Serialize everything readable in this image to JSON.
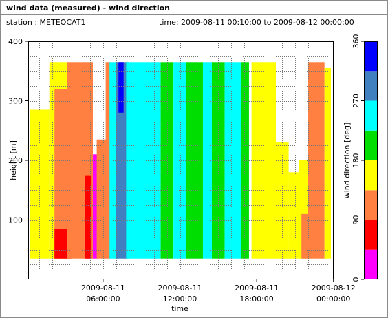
{
  "header": {
    "title": "wind data (measured) - wind direction",
    "station_label": "station : METEOCAT1",
    "time_label": "time: 2009-08-11 00:10:00 to 2009-08-12 00:00:00"
  },
  "chart_data": {
    "type": "heatmap",
    "xlabel": "time",
    "ylabel": "height [m]",
    "xlim": [
      0,
      24
    ],
    "ylim": [
      0,
      400
    ],
    "x_ticks": [
      {
        "value": 6,
        "line1": "2009-08-11",
        "line2": "06:00:00"
      },
      {
        "value": 12,
        "line1": "2009-08-11",
        "line2": "12:00:00"
      },
      {
        "value": 18,
        "line1": "2009-08-11",
        "line2": "18:00:00"
      },
      {
        "value": 24,
        "line1": "2009-08-12",
        "line2": "00:00:00"
      }
    ],
    "y_ticks": [
      100,
      200,
      300,
      400
    ],
    "grid": true,
    "colorbar": {
      "label": "wind direction [deg]",
      "ticks": [
        0,
        90,
        180,
        270,
        360
      ],
      "bins": [
        {
          "from": 0,
          "to": 45,
          "color": "#ff00ff"
        },
        {
          "from": 45,
          "to": 90,
          "color": "#ff0000"
        },
        {
          "from": 90,
          "to": 135,
          "color": "#ff8040"
        },
        {
          "from": 135,
          "to": 180,
          "color": "#ffff00"
        },
        {
          "from": 180,
          "to": 225,
          "color": "#00dd00"
        },
        {
          "from": 225,
          "to": 270,
          "color": "#00ffff"
        },
        {
          "from": 270,
          "to": 315,
          "color": "#4080c0"
        },
        {
          "from": 315,
          "to": 360,
          "color": "#0000ff"
        }
      ]
    },
    "data_range": {
      "height_min": 35,
      "height_max": 365
    },
    "regions": [
      {
        "t": [
          0.3,
          1.8
        ],
        "h": [
          35,
          285
        ],
        "dir": 160
      },
      {
        "t": [
          1.8,
          3.2
        ],
        "h": [
          35,
          365
        ],
        "dir": 160
      },
      {
        "t": [
          2.2,
          3.4
        ],
        "h": [
          35,
          320
        ],
        "dir": 110
      },
      {
        "t": [
          2.2,
          3.6
        ],
        "h": [
          35,
          85
        ],
        "dir": 60
      },
      {
        "t": [
          3.2,
          5.2
        ],
        "h": [
          35,
          365
        ],
        "dir": 110
      },
      {
        "t": [
          4.6,
          5.1
        ],
        "h": [
          35,
          175
        ],
        "dir": 60
      },
      {
        "t": [
          5.2,
          5.6
        ],
        "h": [
          35,
          210
        ],
        "dir": 30
      },
      {
        "t": [
          5.5,
          6.3
        ],
        "h": [
          35,
          235
        ],
        "dir": 110
      },
      {
        "t": [
          6.2,
          6.6
        ],
        "h": [
          35,
          365
        ],
        "dir": 110
      },
      {
        "t": [
          6.5,
          7.2
        ],
        "h": [
          35,
          365
        ],
        "dir": 250
      },
      {
        "t": [
          7.0,
          8.0
        ],
        "h": [
          35,
          365
        ],
        "dir": 300
      },
      {
        "t": [
          7.2,
          7.6
        ],
        "h": [
          280,
          365
        ],
        "dir": 340
      },
      {
        "t": [
          7.8,
          8.4
        ],
        "h": [
          35,
          365
        ],
        "dir": 250
      },
      {
        "t": [
          8.4,
          10.5
        ],
        "h": [
          35,
          365
        ],
        "dir": 250
      },
      {
        "t": [
          10.5,
          11.5
        ],
        "h": [
          35,
          365
        ],
        "dir": 200
      },
      {
        "t": [
          11.5,
          12.5
        ],
        "h": [
          35,
          365
        ],
        "dir": 250
      },
      {
        "t": [
          12.5,
          13.8
        ],
        "h": [
          35,
          365
        ],
        "dir": 200
      },
      {
        "t": [
          13.8,
          14.5
        ],
        "h": [
          35,
          365
        ],
        "dir": 250
      },
      {
        "t": [
          14.5,
          15.5
        ],
        "h": [
          35,
          365
        ],
        "dir": 200
      },
      {
        "t": [
          15.5,
          16.8
        ],
        "h": [
          35,
          365
        ],
        "dir": 250
      },
      {
        "t": [
          16.8,
          17.4
        ],
        "h": [
          35,
          365
        ],
        "dir": 200
      },
      {
        "t": [
          17.6,
          19.5
        ],
        "h": [
          35,
          365
        ],
        "dir": 160
      },
      {
        "t": [
          19.5,
          20.5
        ],
        "h": [
          35,
          230
        ],
        "dir": 160
      },
      {
        "t": [
          20.5,
          21.3
        ],
        "h": [
          35,
          180
        ],
        "dir": 160
      },
      {
        "t": [
          21.3,
          22.0
        ],
        "h": [
          35,
          200
        ],
        "dir": 160
      },
      {
        "t": [
          21.5,
          22.2
        ],
        "h": [
          35,
          110
        ],
        "dir": 110
      },
      {
        "t": [
          22.0,
          23.3
        ],
        "h": [
          35,
          365
        ],
        "dir": 110
      },
      {
        "t": [
          23.3,
          23.8
        ],
        "h": [
          35,
          355
        ],
        "dir": 160
      }
    ]
  }
}
